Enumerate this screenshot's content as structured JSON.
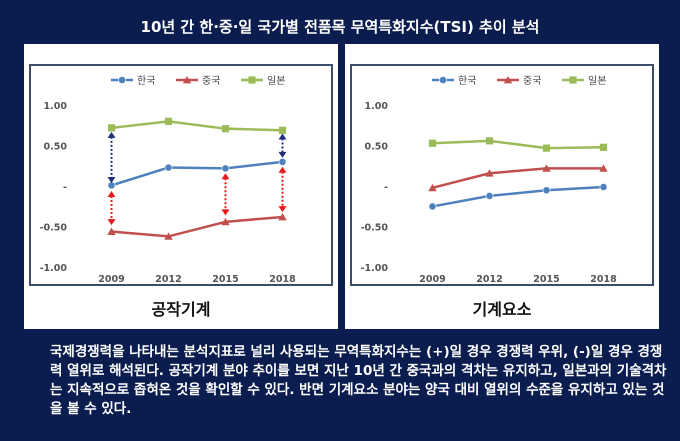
{
  "title": "10년 간 한·중·일 국가별 전품목 무역특화지수(TSI) 추이 분석",
  "description": "국제경쟁력을 나타내는 분석지표로 널리 사용되는 무역특화지수는 (+)일 경우 경쟁력 우위, (-)일 경우 경쟁력 열위로 해석된다. 공작기계 분야 추이를 보면 지난 10년 간 중국과의 격차는 유지하고, 일본과의 기술격차는 지속적으로 좁혀온 것을 확인할 수 있다. 반면 기계요소 분야는 양국 대비 열위의 수준을 유지하고 있는 것을 볼 수 있다.",
  "colors": {
    "korea": "#4f81bd",
    "china": "#c0504d",
    "japan": "#9bbb59",
    "arrow_blue": "#1f2f7a",
    "arrow_red": "#e8191b"
  },
  "chart_data": [
    {
      "type": "line",
      "caption": "공작기계",
      "x": [
        "2009",
        "2012",
        "2015",
        "2018"
      ],
      "ylim": [
        -1.0,
        1.0
      ],
      "yticks": [
        "1.00",
        "0.50",
        "-",
        "-0.50",
        "-1.00"
      ],
      "legend_position": "top",
      "grid": false,
      "series": [
        {
          "name": "한국",
          "values": [
            0.02,
            0.24,
            0.23,
            0.31
          ],
          "marker": "circle"
        },
        {
          "name": "중국",
          "values": [
            -0.55,
            -0.61,
            -0.43,
            -0.37
          ],
          "marker": "triangle"
        },
        {
          "name": "일본",
          "values": [
            0.73,
            0.81,
            0.72,
            0.7
          ],
          "marker": "square"
        }
      ],
      "annotations": [
        {
          "kind": "double-arrow",
          "color": "blue",
          "x": "2009",
          "from": 0.05,
          "to": 0.68
        },
        {
          "kind": "double-arrow",
          "color": "blue",
          "x": "2018",
          "from": 0.36,
          "to": 0.66
        },
        {
          "kind": "double-arrow",
          "color": "red",
          "x": "2009",
          "from": -0.05,
          "to": -0.47
        },
        {
          "kind": "double-arrow",
          "color": "red",
          "x": "2015",
          "from": 0.17,
          "to": -0.35
        },
        {
          "kind": "double-arrow",
          "color": "red",
          "x": "2018",
          "from": 0.25,
          "to": -0.31
        }
      ]
    },
    {
      "type": "line",
      "caption": "기계요소",
      "x": [
        "2009",
        "2012",
        "2015",
        "2018"
      ],
      "ylim": [
        -1.0,
        1.0
      ],
      "yticks": [
        "1.00",
        "0.50",
        "-",
        "-0.50",
        "-1.00"
      ],
      "legend_position": "top",
      "grid": false,
      "series": [
        {
          "name": "한국",
          "values": [
            -0.24,
            -0.11,
            -0.04,
            0.0
          ],
          "marker": "circle"
        },
        {
          "name": "중국",
          "values": [
            -0.01,
            0.17,
            0.23,
            0.23
          ],
          "marker": "triangle"
        },
        {
          "name": "일본",
          "values": [
            0.54,
            0.57,
            0.48,
            0.49
          ],
          "marker": "square"
        }
      ],
      "annotations": []
    }
  ]
}
